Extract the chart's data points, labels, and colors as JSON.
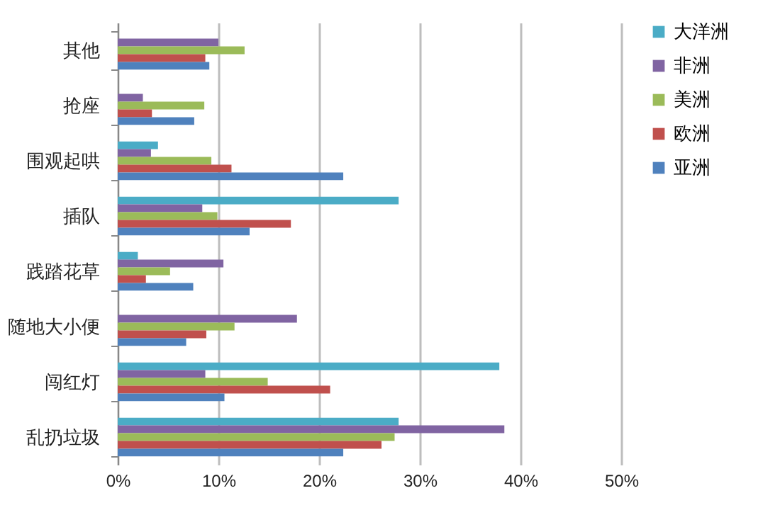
{
  "chart_data": {
    "type": "bar",
    "orientation": "horizontal",
    "categories": [
      "其他",
      "抢座",
      "围观起哄",
      "插队",
      "践踏花草",
      "随地大小便",
      "闯红灯",
      "乱扔垃圾"
    ],
    "series": [
      {
        "name": "大洋洲",
        "color": "#4bacc6",
        "values": [
          null,
          null,
          4.0,
          27.9,
          2.0,
          null,
          37.9,
          27.9
        ]
      },
      {
        "name": "非洲",
        "color": "#8064a2",
        "values": [
          10.0,
          2.5,
          3.3,
          8.4,
          10.5,
          17.8,
          8.7,
          38.4
        ]
      },
      {
        "name": "美洲",
        "color": "#9bbb59",
        "values": [
          12.6,
          8.6,
          9.3,
          9.9,
          5.2,
          11.6,
          14.9,
          27.5
        ]
      },
      {
        "name": "欧洲",
        "color": "#c0504d",
        "values": [
          8.7,
          3.4,
          11.3,
          17.2,
          2.8,
          8.8,
          21.1,
          26.2
        ]
      },
      {
        "name": "亚洲",
        "color": "#4f81bd",
        "values": [
          9.1,
          7.6,
          22.4,
          13.1,
          7.5,
          6.8,
          10.6,
          22.4
        ]
      }
    ],
    "xlim": [
      0,
      50
    ],
    "xticks": [
      {
        "value": 0,
        "label": "0%"
      },
      {
        "value": 10,
        "label": "10%"
      },
      {
        "value": 20,
        "label": "20%"
      },
      {
        "value": 30,
        "label": "30%"
      },
      {
        "value": 40,
        "label": "40%"
      },
      {
        "value": 50,
        "label": "50%"
      }
    ],
    "grid": "x",
    "legend": "right"
  }
}
